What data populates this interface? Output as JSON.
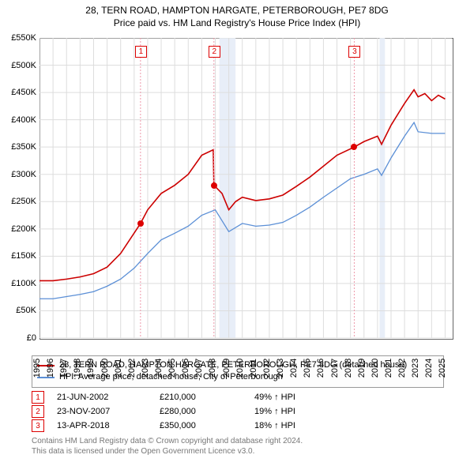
{
  "title_line1": "28, TERN ROAD, HAMPTON HARGATE, PETERBOROUGH, PE7 8DG",
  "title_line2": "Price paid vs. HM Land Registry's House Price Index (HPI)",
  "chart": {
    "type": "line",
    "xlim": [
      1995,
      2025.5
    ],
    "ylim": [
      0,
      550000
    ],
    "ytick_step": 50000,
    "yticks_labels": [
      "£0",
      "£50K",
      "£100K",
      "£150K",
      "£200K",
      "£250K",
      "£300K",
      "£350K",
      "£400K",
      "£450K",
      "£500K",
      "£550K"
    ],
    "xticks": [
      1995,
      1996,
      1997,
      1998,
      1999,
      2000,
      2001,
      2002,
      2003,
      2004,
      2005,
      2006,
      2007,
      2008,
      2009,
      2010,
      2011,
      2012,
      2013,
      2014,
      2015,
      2016,
      2017,
      2018,
      2019,
      2020,
      2021,
      2022,
      2023,
      2024,
      2025
    ],
    "grid_color": "#dddddd",
    "background_color": "#ffffff",
    "series": {
      "property": {
        "color": "#cc0000",
        "width": 1.6,
        "label": "28, TERN ROAD, HAMPTON HARGATE, PETERBOROUGH, PE7 8DG (detached house)",
        "points": [
          [
            1995,
            105000
          ],
          [
            1996,
            105000
          ],
          [
            1997,
            108000
          ],
          [
            1998,
            112000
          ],
          [
            1999,
            118000
          ],
          [
            2000,
            130000
          ],
          [
            2001,
            155000
          ],
          [
            2002.47,
            210000
          ],
          [
            2003,
            235000
          ],
          [
            2004,
            265000
          ],
          [
            2005,
            280000
          ],
          [
            2006,
            300000
          ],
          [
            2007,
            335000
          ],
          [
            2007.85,
            345000
          ],
          [
            2007.9,
            280000
          ],
          [
            2008.5,
            265000
          ],
          [
            2009,
            235000
          ],
          [
            2009.5,
            250000
          ],
          [
            2010,
            258000
          ],
          [
            2011,
            252000
          ],
          [
            2012,
            255000
          ],
          [
            2013,
            262000
          ],
          [
            2014,
            278000
          ],
          [
            2015,
            295000
          ],
          [
            2016,
            315000
          ],
          [
            2017,
            335000
          ],
          [
            2018.28,
            350000
          ],
          [
            2019,
            360000
          ],
          [
            2020,
            370000
          ],
          [
            2020.3,
            355000
          ],
          [
            2021,
            390000
          ],
          [
            2022,
            430000
          ],
          [
            2022.7,
            455000
          ],
          [
            2023,
            442000
          ],
          [
            2023.5,
            448000
          ],
          [
            2024,
            435000
          ],
          [
            2024.5,
            445000
          ],
          [
            2025,
            438000
          ]
        ]
      },
      "hpi": {
        "color": "#5b8fd6",
        "width": 1.3,
        "label": "HPI: Average price, detached house, City of Peterborough",
        "points": [
          [
            1995,
            72000
          ],
          [
            1996,
            72000
          ],
          [
            1997,
            76000
          ],
          [
            1998,
            80000
          ],
          [
            1999,
            85000
          ],
          [
            2000,
            95000
          ],
          [
            2001,
            108000
          ],
          [
            2002,
            128000
          ],
          [
            2003,
            155000
          ],
          [
            2004,
            180000
          ],
          [
            2005,
            192000
          ],
          [
            2006,
            205000
          ],
          [
            2007,
            225000
          ],
          [
            2008,
            235000
          ],
          [
            2008.5,
            215000
          ],
          [
            2009,
            195000
          ],
          [
            2010,
            210000
          ],
          [
            2011,
            205000
          ],
          [
            2012,
            207000
          ],
          [
            2013,
            212000
          ],
          [
            2014,
            225000
          ],
          [
            2015,
            240000
          ],
          [
            2016,
            258000
          ],
          [
            2017,
            275000
          ],
          [
            2018,
            292000
          ],
          [
            2019,
            300000
          ],
          [
            2020,
            310000
          ],
          [
            2020.3,
            298000
          ],
          [
            2021,
            330000
          ],
          [
            2022,
            370000
          ],
          [
            2022.7,
            395000
          ],
          [
            2023,
            378000
          ],
          [
            2024,
            375000
          ],
          [
            2025,
            375000
          ]
        ]
      }
    },
    "sale_markers": [
      {
        "n": "1",
        "x": 2002.47,
        "y": 210000
      },
      {
        "n": "2",
        "x": 2007.9,
        "y": 280000
      },
      {
        "n": "3",
        "x": 2018.28,
        "y": 350000
      }
    ],
    "recession_bands": [
      {
        "start": 2008.3,
        "end": 2009.5
      },
      {
        "start": 2020.15,
        "end": 2020.55
      }
    ]
  },
  "legend": {
    "series1_color": "#cc0000",
    "series2_color": "#5b8fd6"
  },
  "sales": [
    {
      "n": "1",
      "date": "21-JUN-2002",
      "price": "£210,000",
      "pct": "49% ↑ HPI"
    },
    {
      "n": "2",
      "date": "23-NOV-2007",
      "price": "£280,000",
      "pct": "19% ↑ HPI"
    },
    {
      "n": "3",
      "date": "13-APR-2018",
      "price": "£350,000",
      "pct": "18% ↑ HPI"
    }
  ],
  "footer1": "Contains HM Land Registry data © Crown copyright and database right 2024.",
  "footer2": "This data is licensed under the Open Government Licence v3.0."
}
